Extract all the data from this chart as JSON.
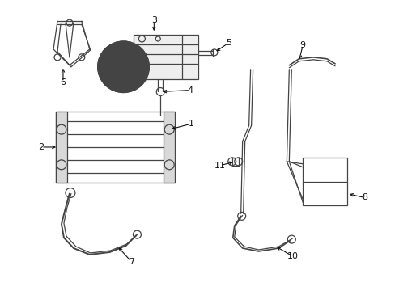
{
  "bg_color": "#ffffff",
  "line_color": "#444444",
  "text_color": "#111111",
  "figsize": [
    4.89,
    3.6
  ],
  "dpi": 100
}
